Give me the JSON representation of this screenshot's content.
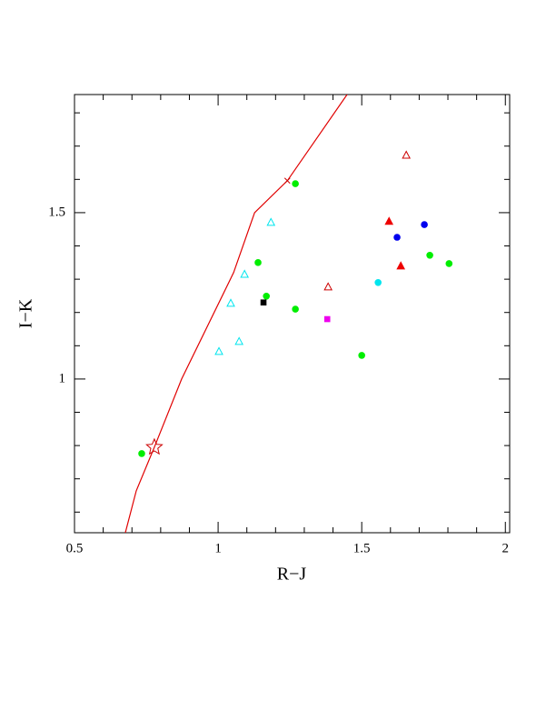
{
  "chart_data": {
    "type": "scatter",
    "xlabel": "R−J",
    "ylabel": "I−K",
    "xlim": [
      0.5,
      2.015
    ],
    "ylim": [
      0.538,
      1.855
    ],
    "xticks": [
      0.5,
      1,
      1.5,
      2
    ],
    "yticks": [
      1,
      1.5
    ],
    "xminor_ticks": [
      0.6,
      0.7,
      0.8,
      0.9,
      1.1,
      1.2,
      1.3,
      1.4,
      1.6,
      1.7,
      1.8,
      1.9
    ],
    "yminor_ticks": [
      0.6,
      0.7,
      0.8,
      0.9,
      1.1,
      1.2,
      1.3,
      1.4,
      1.6,
      1.7,
      1.8
    ],
    "series": [
      {
        "marker": "line",
        "color": "#e00000",
        "x": [
          0.677,
          0.715,
          0.778,
          0.873,
          1.054,
          1.127,
          1.241,
          1.449
        ],
        "y": [
          0.538,
          0.664,
          0.795,
          1.0,
          1.32,
          1.5,
          1.596,
          1.855
        ]
      },
      {
        "marker": "circle",
        "color": "#00ee00",
        "x": [
          1.269,
          1.139,
          1.168,
          1.269,
          1.5,
          1.737,
          1.804,
          0.734
        ],
        "y": [
          1.587,
          1.35,
          1.249,
          1.21,
          1.071,
          1.372,
          1.347,
          0.776
        ]
      },
      {
        "marker": "triangle-open",
        "color": "#00e5ee",
        "x": [
          1.184,
          1.092,
          1.044,
          1.073,
          1.003
        ],
        "y": [
          1.47,
          1.314,
          1.227,
          1.112,
          1.082
        ]
      },
      {
        "marker": "circle",
        "color": "#00e5ee",
        "x": [
          1.557
        ],
        "y": [
          1.29
        ]
      },
      {
        "marker": "square",
        "color": "#000000",
        "x": [
          1.158
        ],
        "y": [
          1.23
        ]
      },
      {
        "marker": "square",
        "color": "#ee00ee",
        "x": [
          1.38
        ],
        "y": [
          1.18
        ]
      },
      {
        "marker": "circle",
        "color": "#0000ee",
        "x": [
          1.623,
          1.718
        ],
        "y": [
          1.426,
          1.464
        ]
      },
      {
        "marker": "triangle",
        "color": "#ee0000",
        "x": [
          1.595,
          1.636
        ],
        "y": [
          1.473,
          1.339
        ]
      },
      {
        "marker": "triangle-open",
        "color": "#cc0000",
        "x": [
          1.655,
          1.383
        ],
        "y": [
          1.672,
          1.276
        ]
      },
      {
        "marker": "star-open",
        "color": "#cc0000",
        "x": [
          0.778
        ],
        "y": [
          0.795
        ]
      },
      {
        "marker": "x",
        "color": "#cc0000",
        "x": [
          1.241
        ],
        "y": [
          1.596
        ]
      }
    ]
  }
}
